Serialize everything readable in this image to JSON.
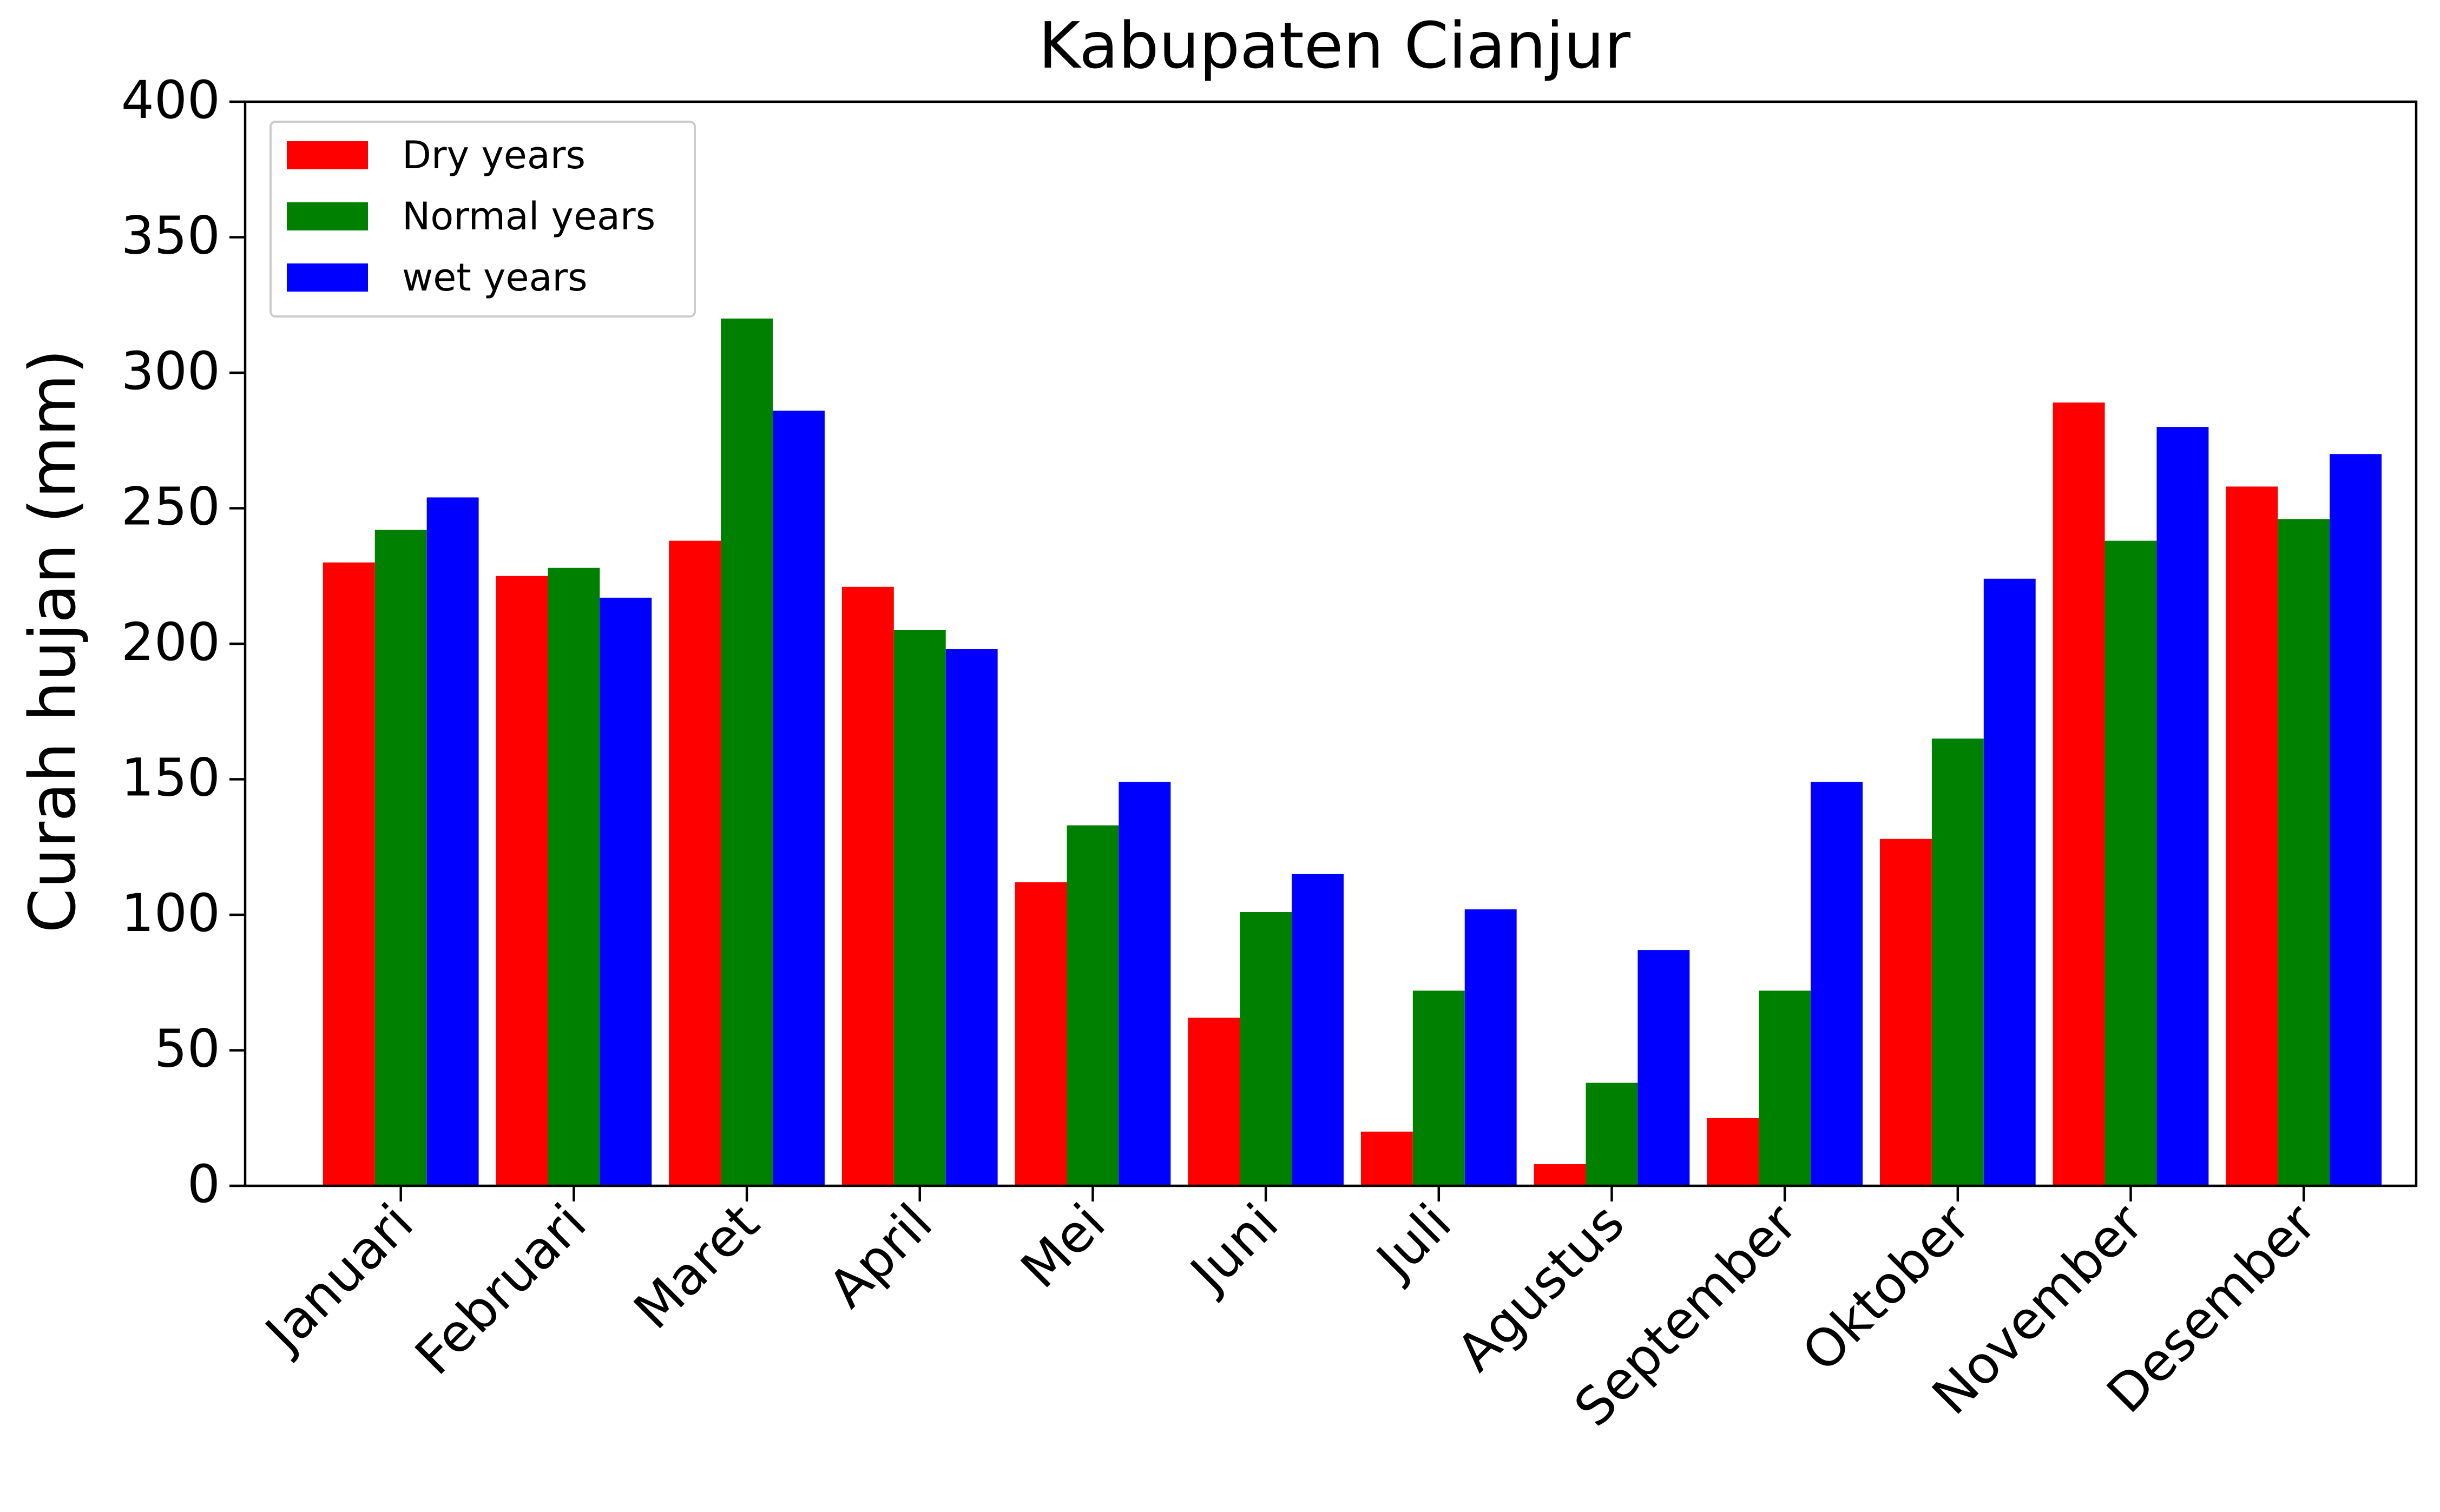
{
  "chart_data": {
    "type": "bar",
    "title": "Kabupaten Cianjur",
    "xlabel": "",
    "ylabel": "Curah hujan (mm)",
    "ylim": [
      0,
      400
    ],
    "yticks": [
      0,
      50,
      100,
      150,
      200,
      250,
      300,
      350,
      400
    ],
    "grid": false,
    "legend_position": "top-left",
    "categories": [
      "Januari",
      "Februari",
      "Maret",
      "April",
      "Mei",
      "Juni",
      "Juli",
      "Agustus",
      "September",
      "Oktober",
      "November",
      "Desember"
    ],
    "series": [
      {
        "name": "Dry years",
        "color": "#ff0000",
        "values": [
          230,
          225,
          238,
          221,
          112,
          62,
          20,
          8,
          25,
          128,
          289,
          258
        ]
      },
      {
        "name": "Normal years",
        "color": "#008000",
        "values": [
          242,
          228,
          320,
          205,
          133,
          101,
          72,
          38,
          72,
          165,
          238,
          246
        ]
      },
      {
        "name": "wet years",
        "color": "#0000ff",
        "values": [
          254,
          217,
          286,
          198,
          149,
          115,
          102,
          87,
          149,
          224,
          280,
          270
        ]
      }
    ]
  }
}
